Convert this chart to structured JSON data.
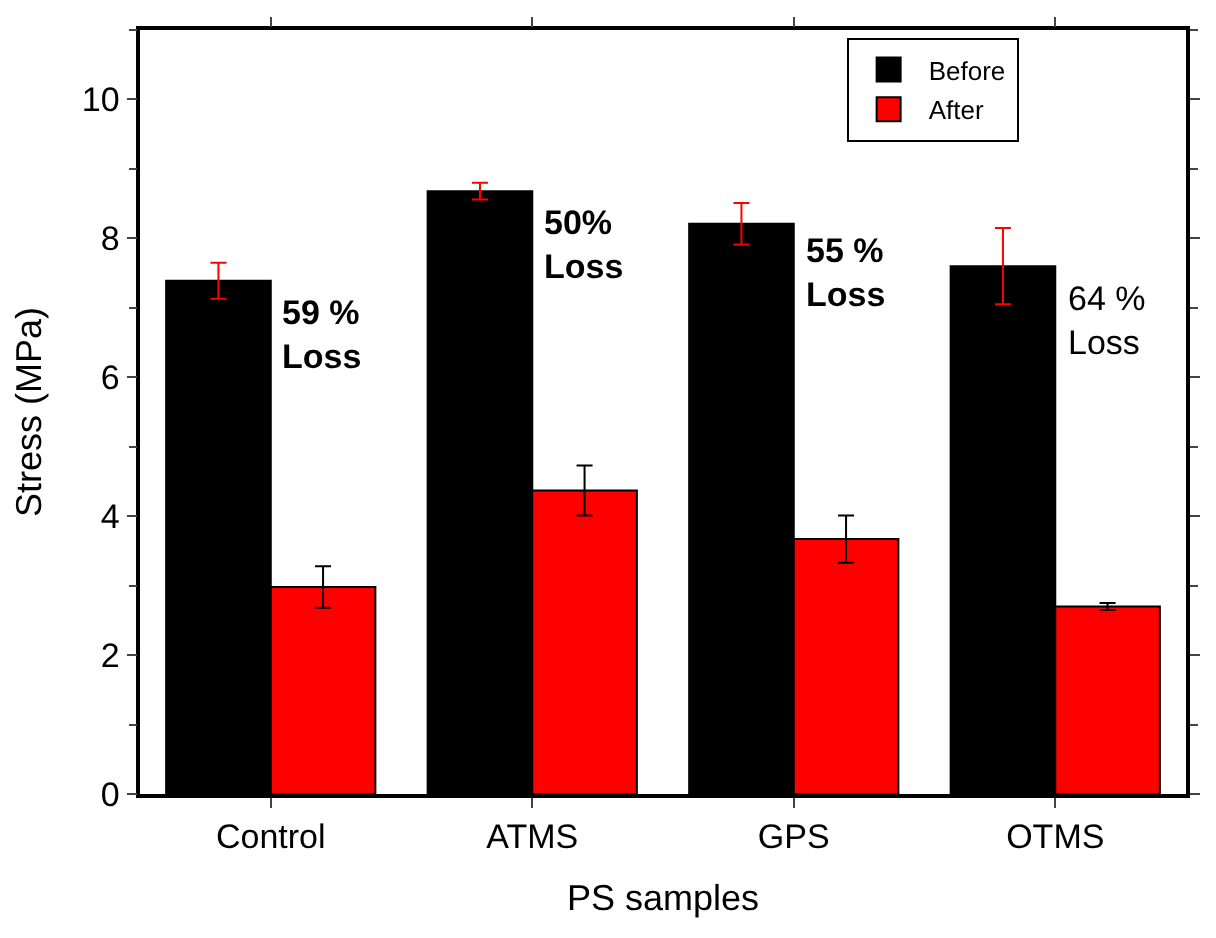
{
  "chart_data": {
    "type": "bar",
    "xlabel": "PS samples",
    "ylabel": "Stress (MPa)",
    "categories": [
      "Control",
      "ATMS",
      "GPS",
      "OTMS"
    ],
    "series": [
      {
        "name": "Before",
        "color": "#000000",
        "values": [
          7.39,
          8.68,
          8.21,
          7.6
        ],
        "errors": [
          0.26,
          0.12,
          0.3,
          0.55
        ]
      },
      {
        "name": "After",
        "color": "#ff0000",
        "values": [
          2.98,
          4.37,
          3.67,
          2.7
        ],
        "errors": [
          0.3,
          0.36,
          0.34,
          0.05
        ]
      }
    ],
    "ylim": [
      0,
      11
    ],
    "yticks": [
      0,
      2,
      4,
      6,
      8,
      10
    ],
    "legend": "top right",
    "annotations": [
      {
        "text": "59 %\nLoss",
        "x": "Control",
        "y": 6.6
      },
      {
        "text": "50%\nLoss",
        "x": "ATMS",
        "y": 7.9
      },
      {
        "text": "55 %\nLoss",
        "x": "GPS",
        "y": 7.5
      },
      {
        "text": "64 %\nLoss",
        "x": "OTMS",
        "y": 6.8
      }
    ]
  }
}
